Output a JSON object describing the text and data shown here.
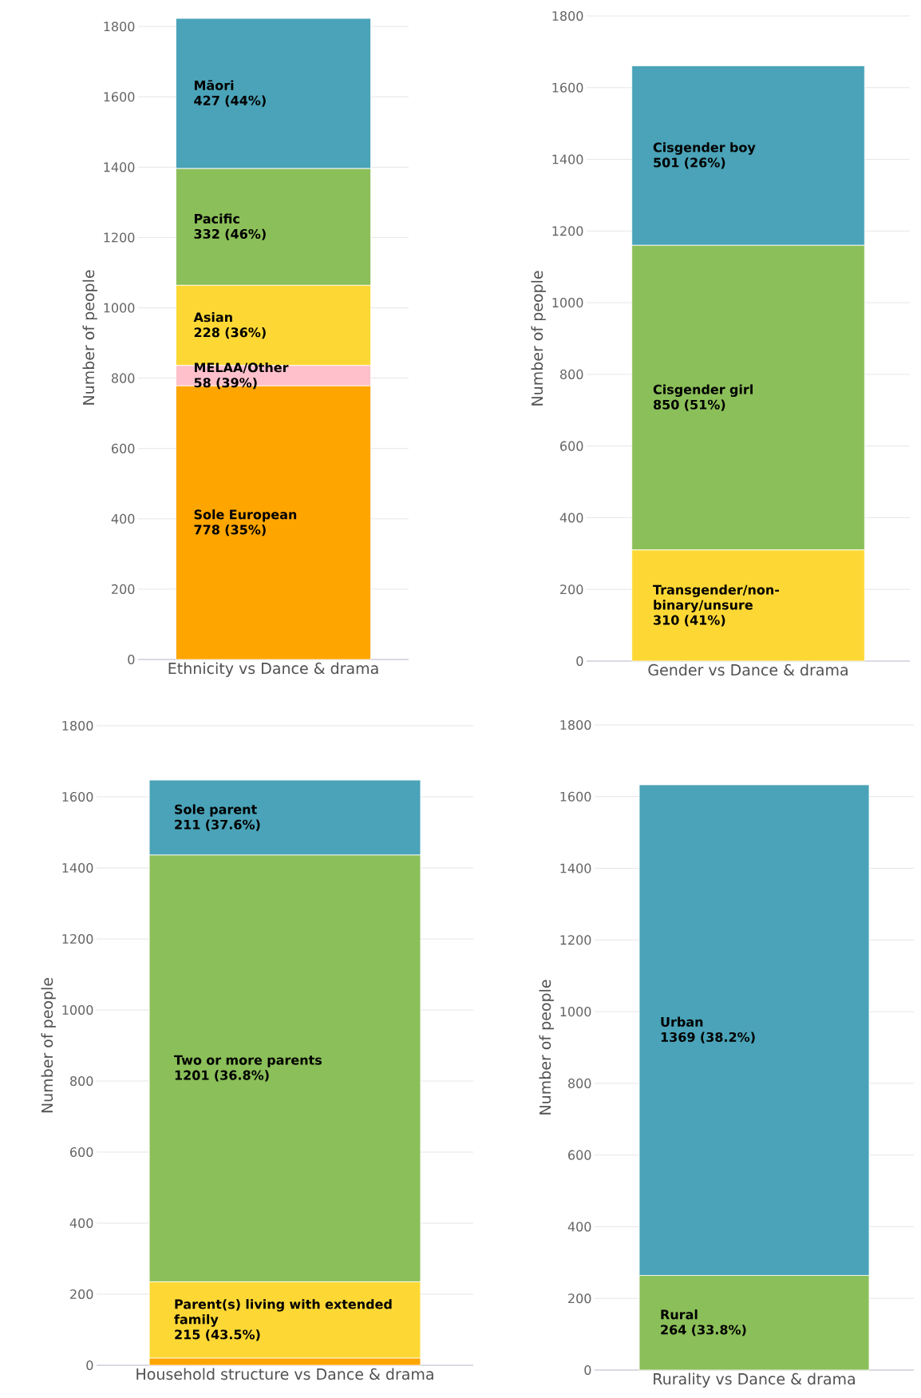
{
  "chart_data": [
    {
      "type": "bar",
      "stacked": true,
      "categories": [
        "Ethnicity vs Dance & drama"
      ],
      "ylabel": "Number of people",
      "ylim": [
        0,
        1830
      ],
      "yticks": [
        0,
        200,
        400,
        600,
        800,
        1000,
        1200,
        1400,
        1600,
        1800
      ],
      "grid": "y",
      "legend": false,
      "series": [
        {
          "name": "Sole European",
          "color": "#ffa500",
          "values": [
            778
          ],
          "value_labels": [
            "778 (35%)"
          ]
        },
        {
          "name": "MELAA/Other",
          "color": "#ffc0cb",
          "values": [
            58
          ],
          "value_labels": [
            "58 (39%)"
          ]
        },
        {
          "name": "Asian",
          "color": "#fdd835",
          "values": [
            228
          ],
          "value_labels": [
            "228 (36%)"
          ]
        },
        {
          "name": "Pacific",
          "color": "#8bbf59",
          "values": [
            332
          ],
          "value_labels": [
            "332 (46%)"
          ]
        },
        {
          "name": "Māori",
          "color": "#4aa3b8",
          "values": [
            427
          ],
          "value_labels": [
            "427 (44%)"
          ]
        }
      ]
    },
    {
      "type": "bar",
      "stacked": true,
      "categories": [
        "Gender vs Dance & drama"
      ],
      "ylabel": "Number of people",
      "ylim": [
        0,
        1800
      ],
      "yticks": [
        0,
        200,
        400,
        600,
        800,
        1000,
        1200,
        1400,
        1600,
        1800
      ],
      "grid": "y",
      "legend": false,
      "series": [
        {
          "name": "Transgender/non-binary/unsure",
          "color": "#fdd835",
          "values": [
            310
          ],
          "value_labels": [
            "310 (41%)"
          ]
        },
        {
          "name": "Cisgender girl",
          "color": "#8bbf59",
          "values": [
            850
          ],
          "value_labels": [
            "850 (51%)"
          ]
        },
        {
          "name": "Cisgender boy",
          "color": "#4aa3b8",
          "values": [
            501
          ],
          "value_labels": [
            "501 (26%)"
          ]
        }
      ]
    },
    {
      "type": "bar",
      "stacked": true,
      "categories": [
        "Household structure vs Dance & drama"
      ],
      "ylabel": "Number of people",
      "ylim": [
        0,
        1800
      ],
      "yticks": [
        0,
        200,
        400,
        600,
        800,
        1000,
        1200,
        1400,
        1600,
        1800
      ],
      "grid": "y",
      "legend": false,
      "series": [
        {
          "color": "#ffa500",
          "values": [
            20
          ],
          "value_labels": [
            null
          ]
        },
        {
          "name": "Parent(s) living with extended family",
          "color": "#fdd835",
          "values": [
            215
          ],
          "value_labels": [
            "215 (43.5%)"
          ]
        },
        {
          "name": "Two or more parents",
          "color": "#8bbf59",
          "values": [
            1201
          ],
          "value_labels": [
            "1201 (36.8%)"
          ]
        },
        {
          "name": "Sole parent",
          "color": "#4aa3b8",
          "values": [
            211
          ],
          "value_labels": [
            "211 (37.6%)"
          ]
        }
      ]
    },
    {
      "type": "bar",
      "stacked": true,
      "categories": [
        "Rurality vs Dance & drama"
      ],
      "ylabel": "Number of people",
      "ylim": [
        0,
        1800
      ],
      "yticks": [
        0,
        200,
        400,
        600,
        800,
        1000,
        1200,
        1400,
        1600,
        1800
      ],
      "grid": "y",
      "legend": false,
      "series": [
        {
          "name": "Rural",
          "color": "#8bbf59",
          "values": [
            264
          ],
          "value_labels": [
            "264 (33.8%)"
          ]
        },
        {
          "name": "Urban",
          "color": "#4aa3b8",
          "values": [
            1369
          ],
          "value_labels": [
            "1369 (38.2%)"
          ]
        }
      ]
    }
  ]
}
